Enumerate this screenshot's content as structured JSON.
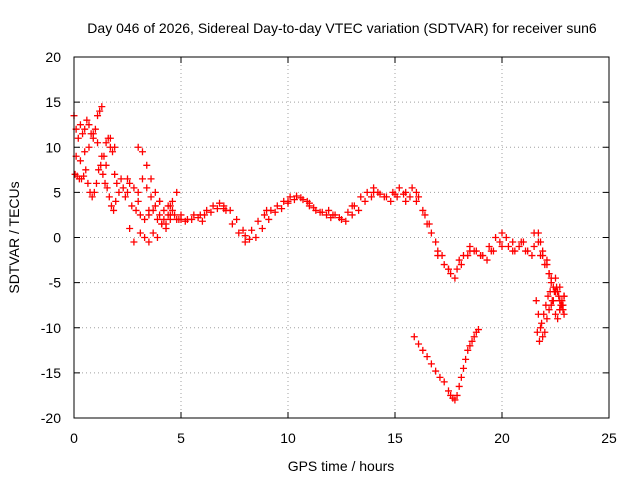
{
  "chart_data": {
    "type": "scatter",
    "title": "Day 046 of 2026, Sidereal Day-to-day VTEC variation (SDTVAR) for receiver sun6",
    "xlabel": "GPS time / hours",
    "ylabel": "SDTVAR / TECUs",
    "xlim": [
      0,
      25
    ],
    "ylim": [
      -20,
      20
    ],
    "xticks": [
      "0",
      "5",
      "10",
      "15",
      "20",
      "25"
    ],
    "yticks": [
      "-20",
      "-15",
      "-10",
      "-5",
      "0",
      "5",
      "10",
      "15",
      "20"
    ],
    "grid": true,
    "marker": "plus",
    "color": "#ff0000",
    "series": [
      {
        "name": "SDTVAR",
        "x": [
          0.0,
          0.1,
          0.2,
          0.3,
          0.4,
          0.5,
          0.6,
          0.7,
          0.8,
          0.9,
          1.0,
          1.1,
          1.2,
          1.3,
          1.4,
          1.5,
          1.6,
          1.7,
          1.8,
          1.9,
          2.0,
          2.2,
          2.4,
          2.6,
          2.8,
          3.0,
          3.2,
          3.4,
          3.6,
          3.8,
          4.0,
          4.2,
          4.4,
          4.6,
          4.8,
          5.0,
          5.3,
          5.6,
          5.9,
          6.2,
          6.5,
          6.8,
          7.1,
          7.4,
          7.7,
          8.0,
          8.3,
          8.6,
          8.9,
          9.2,
          9.5,
          9.8,
          10.1,
          10.4,
          10.7,
          11.0,
          11.3,
          11.6,
          11.9,
          12.2,
          12.5,
          12.8,
          13.1,
          13.4,
          13.7,
          14.0,
          14.3,
          14.6,
          14.9,
          15.2,
          15.5,
          15.8,
          16.1,
          16.4,
          16.7,
          17.0,
          17.3,
          17.6,
          17.9,
          18.2,
          18.5,
          18.8,
          19.1,
          19.4,
          19.7,
          20.0,
          20.3,
          20.6,
          20.9,
          21.2,
          21.5,
          21.8,
          22.0,
          22.2,
          22.4,
          22.6,
          22.8,
          22.9,
          0.05,
          0.15,
          0.25,
          0.35,
          0.45,
          0.55,
          0.65,
          0.75,
          0.85,
          0.95,
          1.05,
          1.15,
          1.25,
          1.35,
          1.45,
          1.55,
          1.65,
          1.75,
          1.85,
          1.95,
          2.1,
          2.3,
          2.5,
          2.7,
          2.9,
          3.1,
          3.3,
          3.5,
          3.7,
          3.9,
          4.1,
          4.3,
          4.5,
          4.7,
          4.9,
          5.2,
          5.5,
          5.8,
          6.1,
          6.4,
          6.7,
          7.0,
          7.3,
          7.6,
          7.9,
          8.2,
          8.5,
          8.8,
          9.1,
          9.4,
          9.7,
          10.0,
          10.3,
          10.6,
          10.9,
          11.2,
          11.5,
          11.8,
          12.1,
          12.4,
          12.7,
          13.0,
          13.3,
          13.6,
          13.9,
          14.2,
          14.5,
          14.8,
          15.1,
          15.4,
          15.7,
          16.0,
          16.3,
          16.6,
          16.9,
          17.2,
          17.5,
          17.8,
          18.1,
          18.4,
          18.7,
          19.0,
          19.3,
          19.6,
          19.9,
          20.2,
          20.5,
          20.8,
          21.1,
          21.4,
          21.7,
          21.9,
          22.1,
          22.3,
          22.5,
          22.7,
          22.85,
          0.1,
          0.3,
          0.5,
          0.7,
          0.9,
          1.1,
          1.3,
          1.5,
          1.7,
          1.9,
          2.5,
          3.0,
          3.5,
          4.0,
          4.5,
          5.0,
          6.0,
          7.0,
          8.0,
          9.0,
          10.0,
          11.0,
          12.0,
          13.0,
          14.0,
          15.0,
          15.5,
          16.0,
          16.5,
          17.0,
          17.5,
          18.0,
          18.5,
          19.0,
          19.5,
          20.0,
          20.5,
          21.0,
          21.5,
          21.8,
          22.2,
          22.5,
          22.7,
          3.0,
          3.2,
          3.4,
          3.6,
          3.8,
          4.0,
          4.2,
          4.4,
          4.6,
          4.8,
          2.6,
          2.8,
          3.1,
          3.3,
          3.5,
          3.7,
          3.9,
          4.1,
          4.3,
          4.5,
          15.9,
          16.1,
          16.3,
          16.5,
          16.7,
          16.9,
          17.1,
          17.3,
          17.5,
          17.6,
          17.7,
          17.8,
          17.9,
          18.0,
          18.1,
          18.2,
          18.3,
          18.4,
          18.5,
          18.6,
          18.7,
          18.8,
          18.9,
          21.6,
          21.7,
          21.8,
          21.9,
          22.0,
          22.1,
          22.2,
          22.3,
          22.4,
          22.5,
          22.6,
          22.7,
          22.8,
          22.9,
          21.65,
          21.75,
          21.85,
          21.95,
          22.05,
          22.15,
          22.25,
          22.35,
          22.45,
          22.55,
          22.65,
          22.75,
          22.85,
          21.7,
          21.9,
          22.1,
          22.3,
          22.5,
          22.7,
          22.9
        ],
        "y": [
          13.5,
          12.0,
          11.0,
          12.5,
          11.5,
          12.0,
          13.0,
          12.5,
          11.5,
          11.0,
          12.0,
          13.5,
          14.0,
          14.5,
          9.0,
          10.5,
          11.0,
          10.0,
          9.5,
          7.0,
          6.0,
          6.5,
          4.5,
          6.0,
          5.5,
          4.0,
          6.5,
          5.5,
          4.5,
          3.5,
          2.5,
          2.0,
          2.5,
          3.0,
          2.0,
          2.5,
          2.0,
          2.5,
          2.5,
          3.0,
          3.5,
          3.8,
          3.0,
          1.5,
          0.5,
          0.2,
          0.8,
          1.8,
          2.5,
          3.0,
          3.5,
          4.0,
          4.5,
          4.6,
          4.2,
          3.5,
          3.0,
          2.8,
          3.0,
          2.5,
          2.0,
          2.8,
          3.5,
          4.5,
          5.0,
          5.5,
          4.8,
          4.5,
          5.0,
          5.5,
          5.0,
          5.5,
          4.5,
          2.5,
          0.5,
          -1.5,
          -3.0,
          -4.0,
          -3.5,
          -2.0,
          -1.0,
          -1.5,
          -2.0,
          -1.0,
          0.0,
          0.5,
          -1.0,
          -1.5,
          -0.5,
          -1.5,
          -1.0,
          -0.5,
          -3.0,
          -4.0,
          -5.5,
          -6.0,
          -7.0,
          -6.5,
          7.0,
          6.8,
          6.5,
          6.5,
          6.8,
          7.5,
          6.0,
          5.0,
          4.5,
          5.0,
          6.0,
          7.5,
          8.0,
          7.0,
          6.0,
          5.5,
          4.5,
          3.5,
          3.0,
          4.0,
          5.0,
          5.5,
          5.0,
          3.5,
          3.0,
          2.5,
          2.0,
          2.5,
          3.0,
          2.0,
          1.5,
          1.5,
          2.0,
          2.5,
          2.0,
          1.8,
          2.0,
          2.2,
          2.5,
          2.8,
          3.2,
          3.5,
          3.0,
          2.0,
          0.8,
          -0.2,
          0.0,
          1.0,
          2.0,
          2.8,
          3.2,
          3.8,
          4.2,
          4.4,
          4.0,
          3.3,
          2.8,
          2.5,
          2.5,
          2.2,
          1.8,
          2.5,
          3.0,
          4.0,
          4.5,
          5.0,
          4.5,
          4.0,
          4.5,
          4.8,
          4.5,
          4.0,
          3.0,
          1.5,
          -0.5,
          -2.0,
          -3.5,
          -4.5,
          -3.0,
          -2.0,
          -1.5,
          -2.0,
          -2.5,
          -1.5,
          -0.5,
          0.0,
          -0.5,
          -1.0,
          -1.5,
          -2.0,
          -0.5,
          -1.5,
          -2.5,
          -5.0,
          -4.5,
          -5.5,
          -7.5,
          9.0,
          8.5,
          9.5,
          10.0,
          11.5,
          10.5,
          9.0,
          8.0,
          11.0,
          10.0,
          6.5,
          5.0,
          3.0,
          4.0,
          3.5,
          2.0,
          1.8,
          3.2,
          -0.5,
          3.0,
          4.0,
          3.8,
          2.2,
          3.5,
          5.0,
          4.8,
          4.0,
          5.0,
          1.5,
          -2.0,
          -3.5,
          -2.5,
          -1.5,
          -2.0,
          -1.5,
          -1.0,
          -1.5,
          -0.5,
          0.5,
          -2.0,
          -4.0,
          -6.0,
          -8.0,
          10.0,
          9.5,
          8.0,
          6.5,
          5.0,
          4.0,
          3.0,
          3.5,
          4.0,
          5.0,
          1.0,
          -0.5,
          0.5,
          0.0,
          -0.5,
          0.5,
          0.0,
          1.5,
          1.0,
          2.5,
          -11.0,
          -11.8,
          -12.5,
          -13.2,
          -14.0,
          -14.8,
          -15.5,
          -16.0,
          -17.0,
          -17.5,
          -17.8,
          -18.0,
          -17.5,
          -16.5,
          -15.5,
          -14.5,
          -13.5,
          -12.5,
          -12.0,
          -11.5,
          -11.0,
          -10.5,
          -10.2,
          -7.0,
          -8.5,
          -10.0,
          -11.0,
          -10.5,
          -9.0,
          -8.0,
          -7.5,
          -7.0,
          -8.5,
          -9.0,
          -8.0,
          -7.5,
          -8.5,
          -10.5,
          -11.5,
          -9.5,
          -8.5,
          -7.5,
          -6.5,
          -6.0,
          -7.0,
          -6.0,
          -5.5,
          -6.5,
          -7.5,
          -8.0,
          0.5,
          -2.0,
          -3.0,
          -4.5,
          -6.0,
          -7.0,
          -6.5
        ]
      }
    ]
  }
}
